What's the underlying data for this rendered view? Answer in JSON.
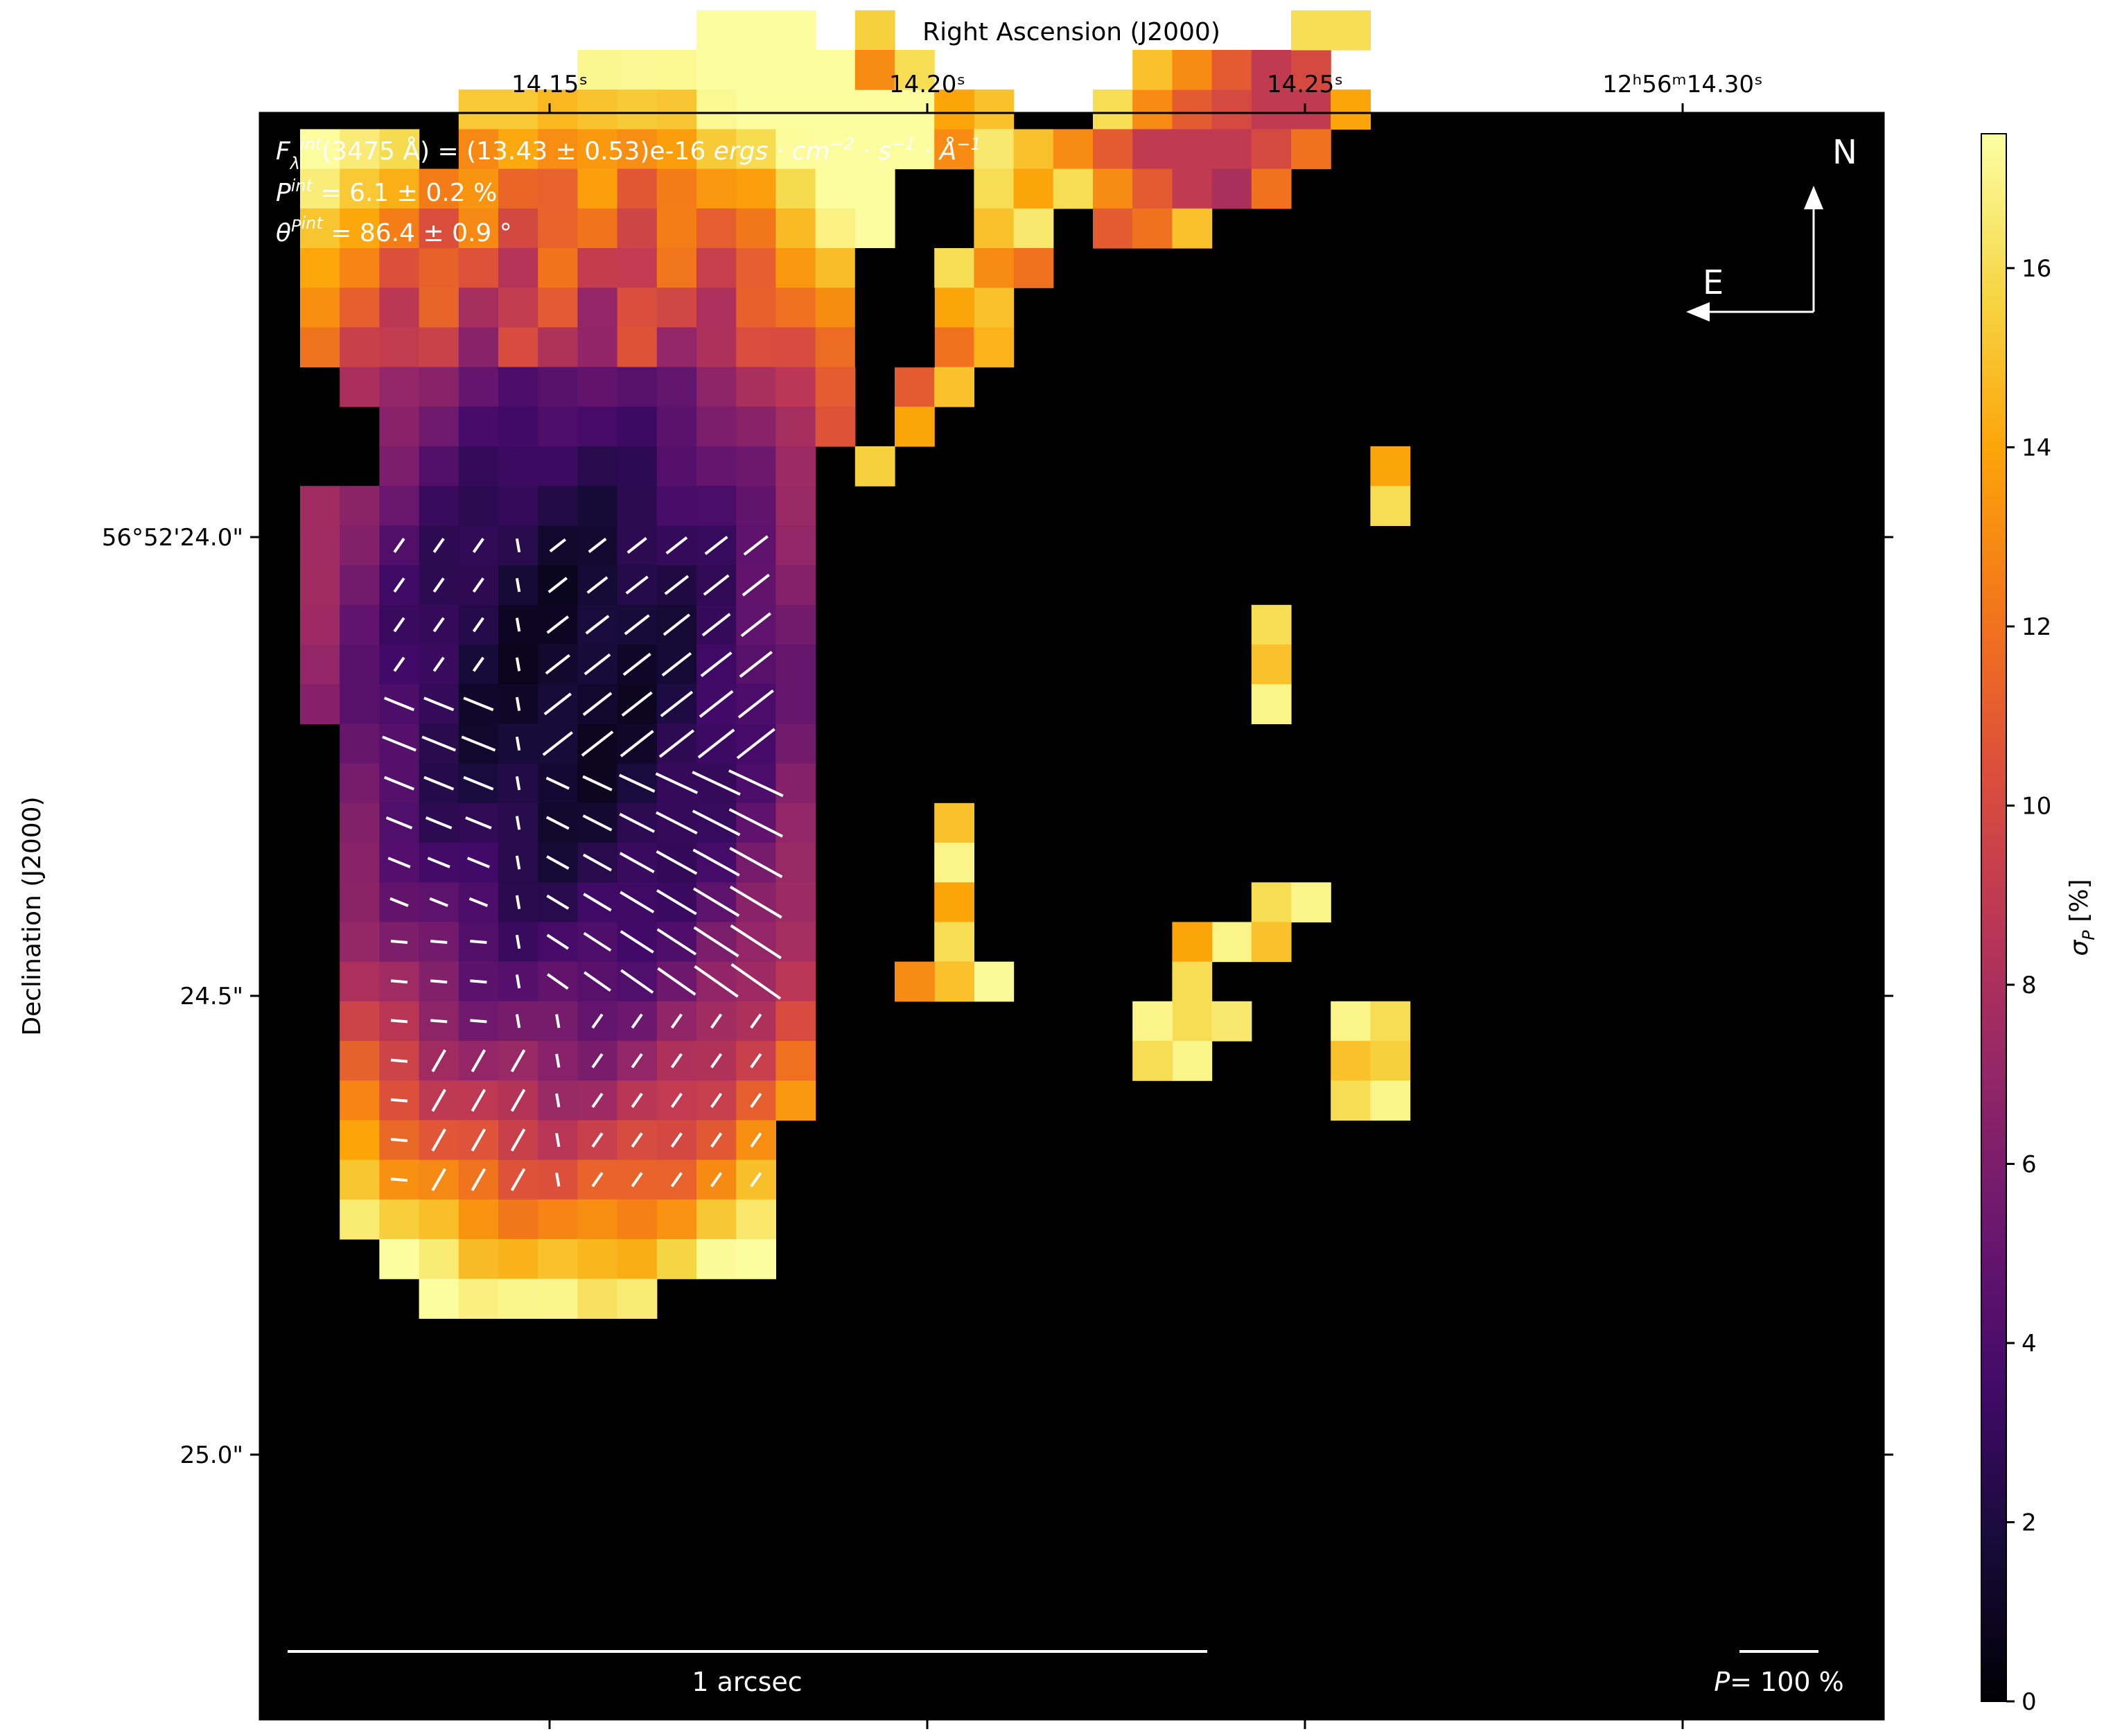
{
  "chart_data": {
    "type": "heatmap",
    "top_axis_label": "Right Ascension (J2000)",
    "top_ticks": [
      {
        "ra_s": 14.15,
        "label": "14.15ˢ"
      },
      {
        "ra_s": 14.2,
        "label": "14.20ˢ"
      },
      {
        "ra_s": 14.25,
        "label": "14.25ˢ"
      },
      {
        "ra_s": 14.3,
        "label": "12ʰ56ᵐ14.30ˢ"
      }
    ],
    "left_axis_label": "Declination (J2000)",
    "left_ticks": [
      {
        "dec_arcsec": 24.0,
        "label": "56°52'24.0\""
      },
      {
        "dec_arcsec": 24.5,
        "label": "24.5\""
      },
      {
        "dec_arcsec": 25.0,
        "label": "25.0\""
      }
    ],
    "colorbar": {
      "label": "σP [%]",
      "min": 0,
      "max": 17.5,
      "ticks": [
        0,
        2,
        4,
        6,
        8,
        10,
        12,
        14,
        16
      ],
      "colormap": "inferno"
    },
    "annotations": {
      "line1": "Fλint(3475 Å) = (13.43 ± 0.53)e-16 ergs · cm⁻² · s⁻¹ · Å⁻¹",
      "line2": "Pint = 6.1 ± 0.2 %",
      "line3": "θPint = 86.4 ± 0.9 °",
      "scale_bar": "1 arcsec",
      "polarization_scale": "P= 100 %",
      "compass_north": "N",
      "compass_east": "E"
    },
    "grid": false,
    "background": "#000000"
  }
}
